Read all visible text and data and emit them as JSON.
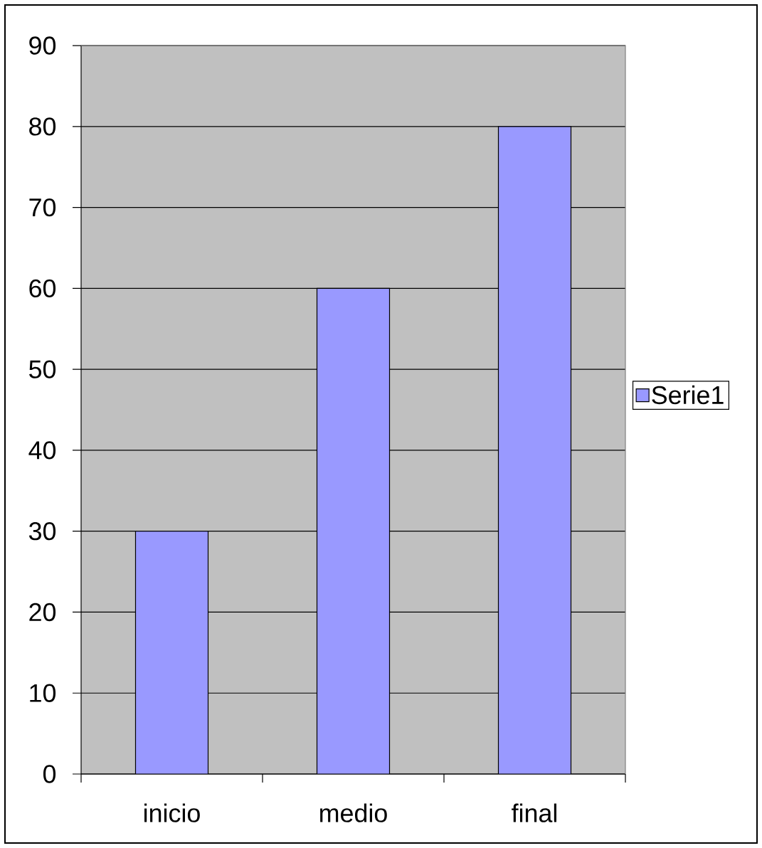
{
  "chart_data": {
    "type": "bar",
    "categories": [
      "inicio",
      "medio",
      "final"
    ],
    "series": [
      {
        "name": "Serie1",
        "color": "#9999ff",
        "values": [
          30,
          60,
          80
        ]
      }
    ],
    "ylim": [
      0,
      90
    ],
    "yticks": [
      0,
      10,
      20,
      30,
      40,
      50,
      60,
      70,
      80,
      90
    ],
    "grid": "y",
    "legend": "right"
  }
}
